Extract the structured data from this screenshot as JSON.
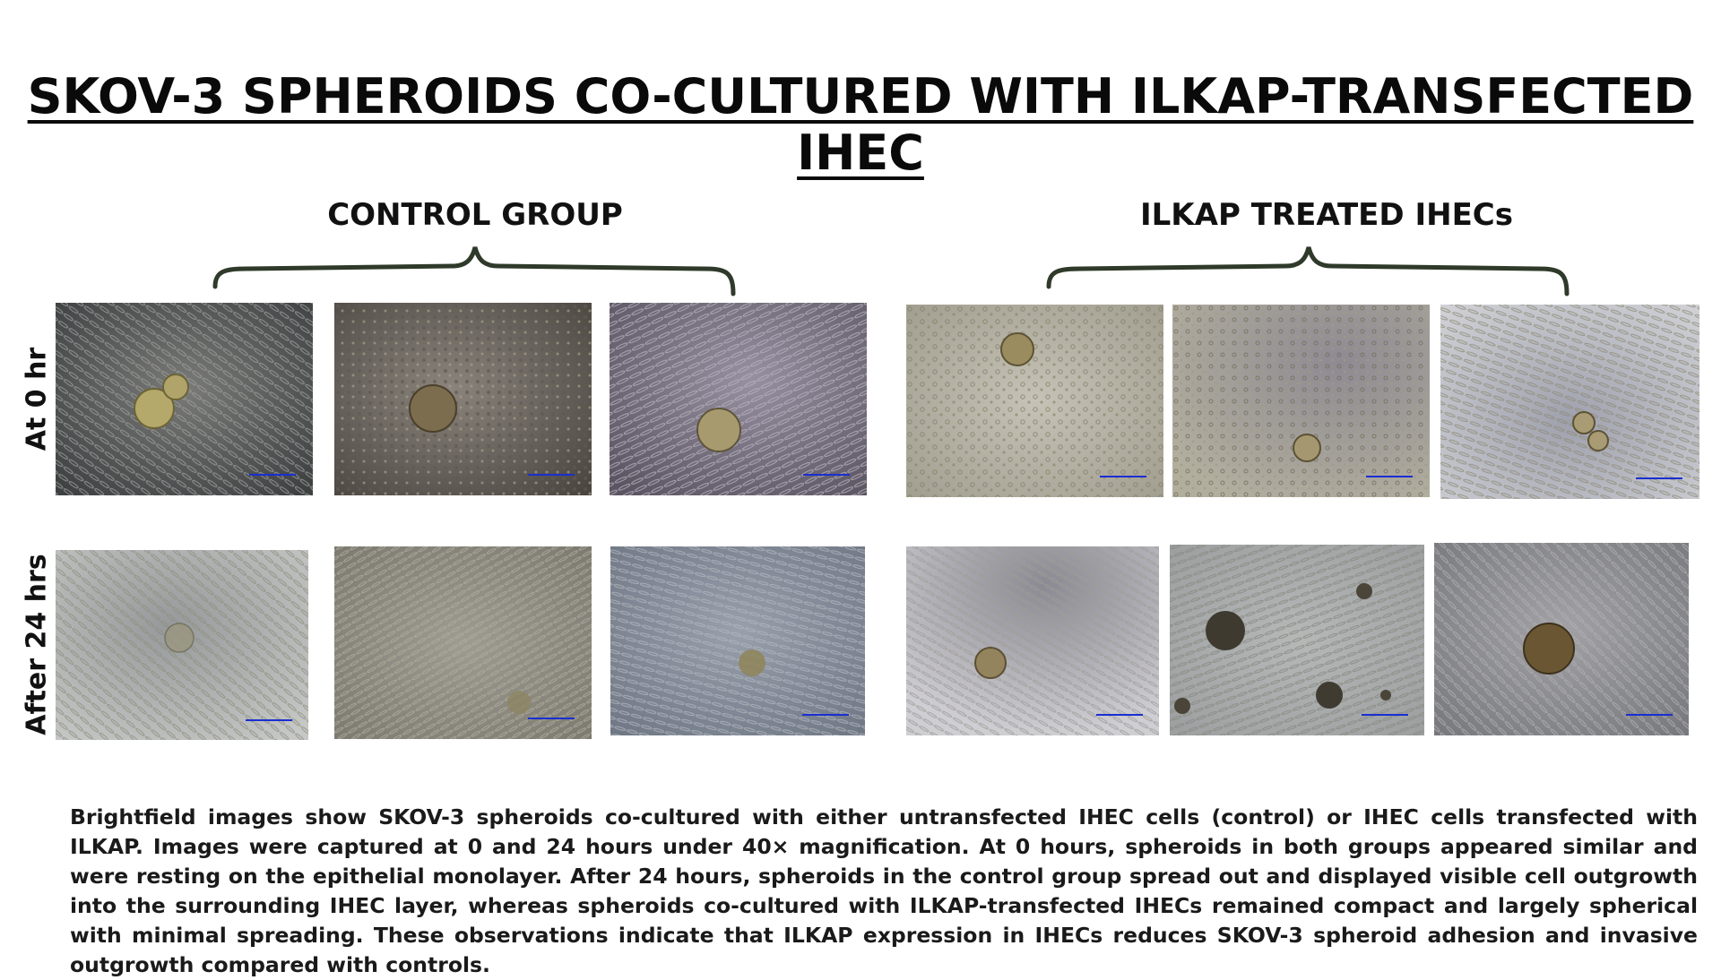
{
  "title": "SKOV-3 SPHEROIDS CO-CULTURED WITH ILKAP-TRANSFECTED IHEC",
  "groups": {
    "control": "CONTROL GROUP",
    "treated": "ILKAP TREATED IHECs"
  },
  "rows": {
    "row0": "At 0 hr",
    "row24": "After 24 hrs"
  },
  "caption": "Brightfield images show SKOV-3 spheroids co-cultured with either untransfected IHEC cells (control) or IHEC cells transfected with ILKAP. Images were captured at 0 and 24 hours under 40× magnification. At 0 hours, spheroids in both groups appeared similar and were resting on the epithelial monolayer. After 24 hours, spheroids in the control group spread out and displayed visible cell outgrowth into the surrounding IHEC layer, whereas spheroids co-cultured with ILKAP-transfected IHECs remained compact and largely spherical with minimal spreading. These observations indicate that ILKAP expression in IHECs reduces SKOV-3 spheroid adhesion and invasive outgrowth compared with controls.",
  "colors": {
    "brace": "#2f3a2a",
    "scale_bar": "#1a2fd0"
  },
  "image_tiles": [
    {
      "group": "control",
      "time": "0 hr",
      "bg": "#5d5f62"
    },
    {
      "group": "control",
      "time": "0 hr",
      "bg": "#6b6560"
    },
    {
      "group": "control",
      "time": "0 hr",
      "bg": "#77707e"
    },
    {
      "group": "treated",
      "time": "0 hr",
      "bg": "#b8b5a8"
    },
    {
      "group": "treated",
      "time": "0 hr",
      "bg": "#9e9a98"
    },
    {
      "group": "treated",
      "time": "0 hr",
      "bg": "#b9bcc6"
    },
    {
      "group": "control",
      "time": "24 hrs",
      "bg": "#a9aca9"
    },
    {
      "group": "control",
      "time": "24 hrs",
      "bg": "#8d8a82"
    },
    {
      "group": "control",
      "time": "24 hrs",
      "bg": "#7f8794"
    },
    {
      "group": "treated",
      "time": "24 hrs",
      "bg": "#b5b3b8"
    },
    {
      "group": "treated",
      "time": "24 hrs",
      "bg": "#a7aaab"
    },
    {
      "group": "treated",
      "time": "24 hrs",
      "bg": "#8e8e92"
    }
  ]
}
